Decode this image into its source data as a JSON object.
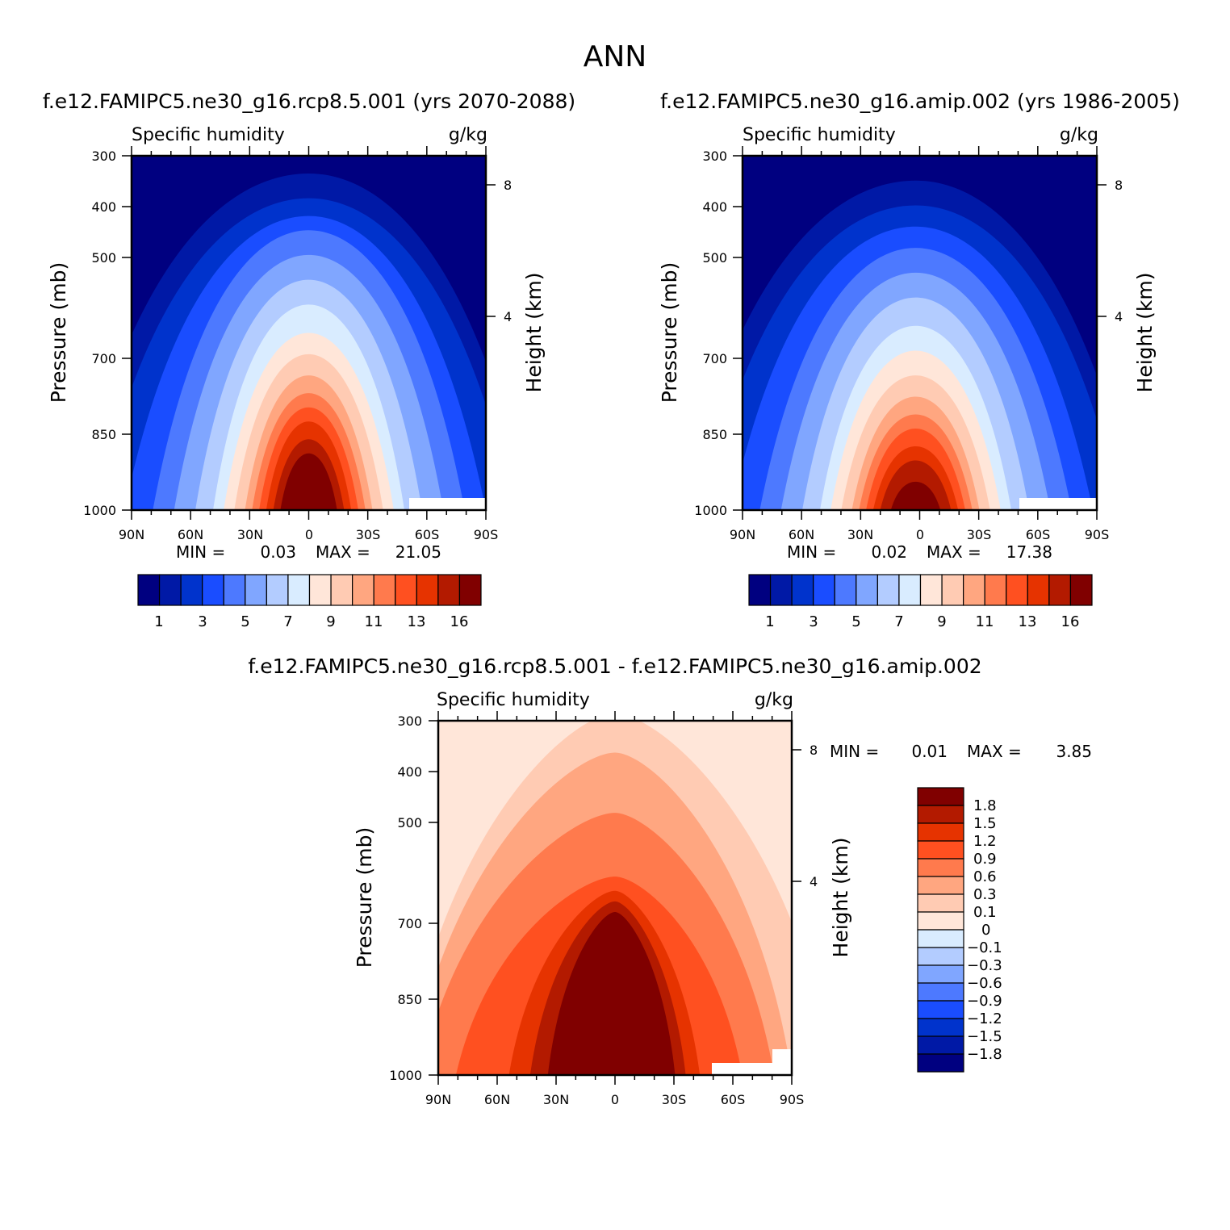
{
  "figure": {
    "title": "ANN"
  },
  "colors": {
    "abs_scale": [
      "#000080",
      "#0019a6",
      "#0033cc",
      "#1a4dff",
      "#4d79ff",
      "#80a6ff",
      "#b3ccff",
      "#d9ecff",
      "#ffe6d9",
      "#ffcbb3",
      "#ffa680",
      "#ff7a4d",
      "#ff5020",
      "#e63300",
      "#b31a00",
      "#800000"
    ],
    "diff_scale": [
      "#000080",
      "#0019a6",
      "#0033cc",
      "#1a4dff",
      "#4d79ff",
      "#80a6ff",
      "#b3ccff",
      "#d9ecff",
      "#ffe6d9",
      "#ffcbb3",
      "#ffa680",
      "#ff7a4d",
      "#ff5020",
      "#e63300",
      "#b31a00",
      "#800000"
    ]
  },
  "chart_data": [
    {
      "type": "heatmap",
      "case_title": "f.e12.FAMIPC5.ne30_g16.rcp8.5.001 (yrs 2070-2088)",
      "variable": "Specific humidity",
      "units": "g/kg",
      "ylabel": "Pressure (mb)",
      "ylabel_right": "Height (km)",
      "x_ticks": [
        "90N",
        "60N",
        "30N",
        "0",
        "30S",
        "60S",
        "90S"
      ],
      "y_ticks": [
        300,
        400,
        500,
        700,
        850,
        1000
      ],
      "ylim": [
        1000,
        300
      ],
      "right_ticks": [
        8,
        4
      ],
      "min_label": "MIN =",
      "min_value": "0.03",
      "max_label": "MAX =",
      "max_value": "21.05",
      "colorbar_labels": [
        "1",
        "3",
        "5",
        "7",
        "9",
        "11",
        "13",
        "16"
      ],
      "peak_lat": 0,
      "peak_level": 21.05
    },
    {
      "type": "heatmap",
      "case_title": "f.e12.FAMIPC5.ne30_g16.amip.002 (yrs 1986-2005)",
      "variable": "Specific humidity",
      "units": "g/kg",
      "ylabel": "Pressure (mb)",
      "ylabel_right": "Height (km)",
      "x_ticks": [
        "90N",
        "60N",
        "30N",
        "0",
        "30S",
        "60S",
        "90S"
      ],
      "y_ticks": [
        300,
        400,
        500,
        700,
        850,
        1000
      ],
      "ylim": [
        1000,
        300
      ],
      "right_ticks": [
        8,
        4
      ],
      "min_label": "MIN =",
      "min_value": "0.02",
      "max_label": "MAX =",
      "max_value": "17.38",
      "colorbar_labels": [
        "1",
        "3",
        "5",
        "7",
        "9",
        "11",
        "13",
        "16"
      ],
      "peak_lat": 0,
      "peak_level": 17.38
    },
    {
      "type": "heatmap",
      "case_title": "f.e12.FAMIPC5.ne30_g16.rcp8.5.001 - f.e12.FAMIPC5.ne30_g16.amip.002",
      "variable": "Specific humidity",
      "units": "g/kg",
      "ylabel": "Pressure (mb)",
      "ylabel_right": "Height (km)",
      "x_ticks": [
        "90N",
        "60N",
        "30N",
        "0",
        "30S",
        "60S",
        "90S"
      ],
      "y_ticks": [
        300,
        400,
        500,
        700,
        850,
        1000
      ],
      "ylim": [
        1000,
        300
      ],
      "right_ticks": [
        8,
        4
      ],
      "min_label": "MIN =",
      "min_value": "0.01",
      "max_label": "MAX =",
      "max_value": "3.85",
      "colorbar_labels": [
        "1.8",
        "1.5",
        "1.2",
        "0.9",
        "0.6",
        "0.3",
        "0.1",
        "0",
        "−0.1",
        "−0.3",
        "−0.6",
        "−0.9",
        "−1.2",
        "−1.5",
        "−1.8"
      ]
    }
  ]
}
